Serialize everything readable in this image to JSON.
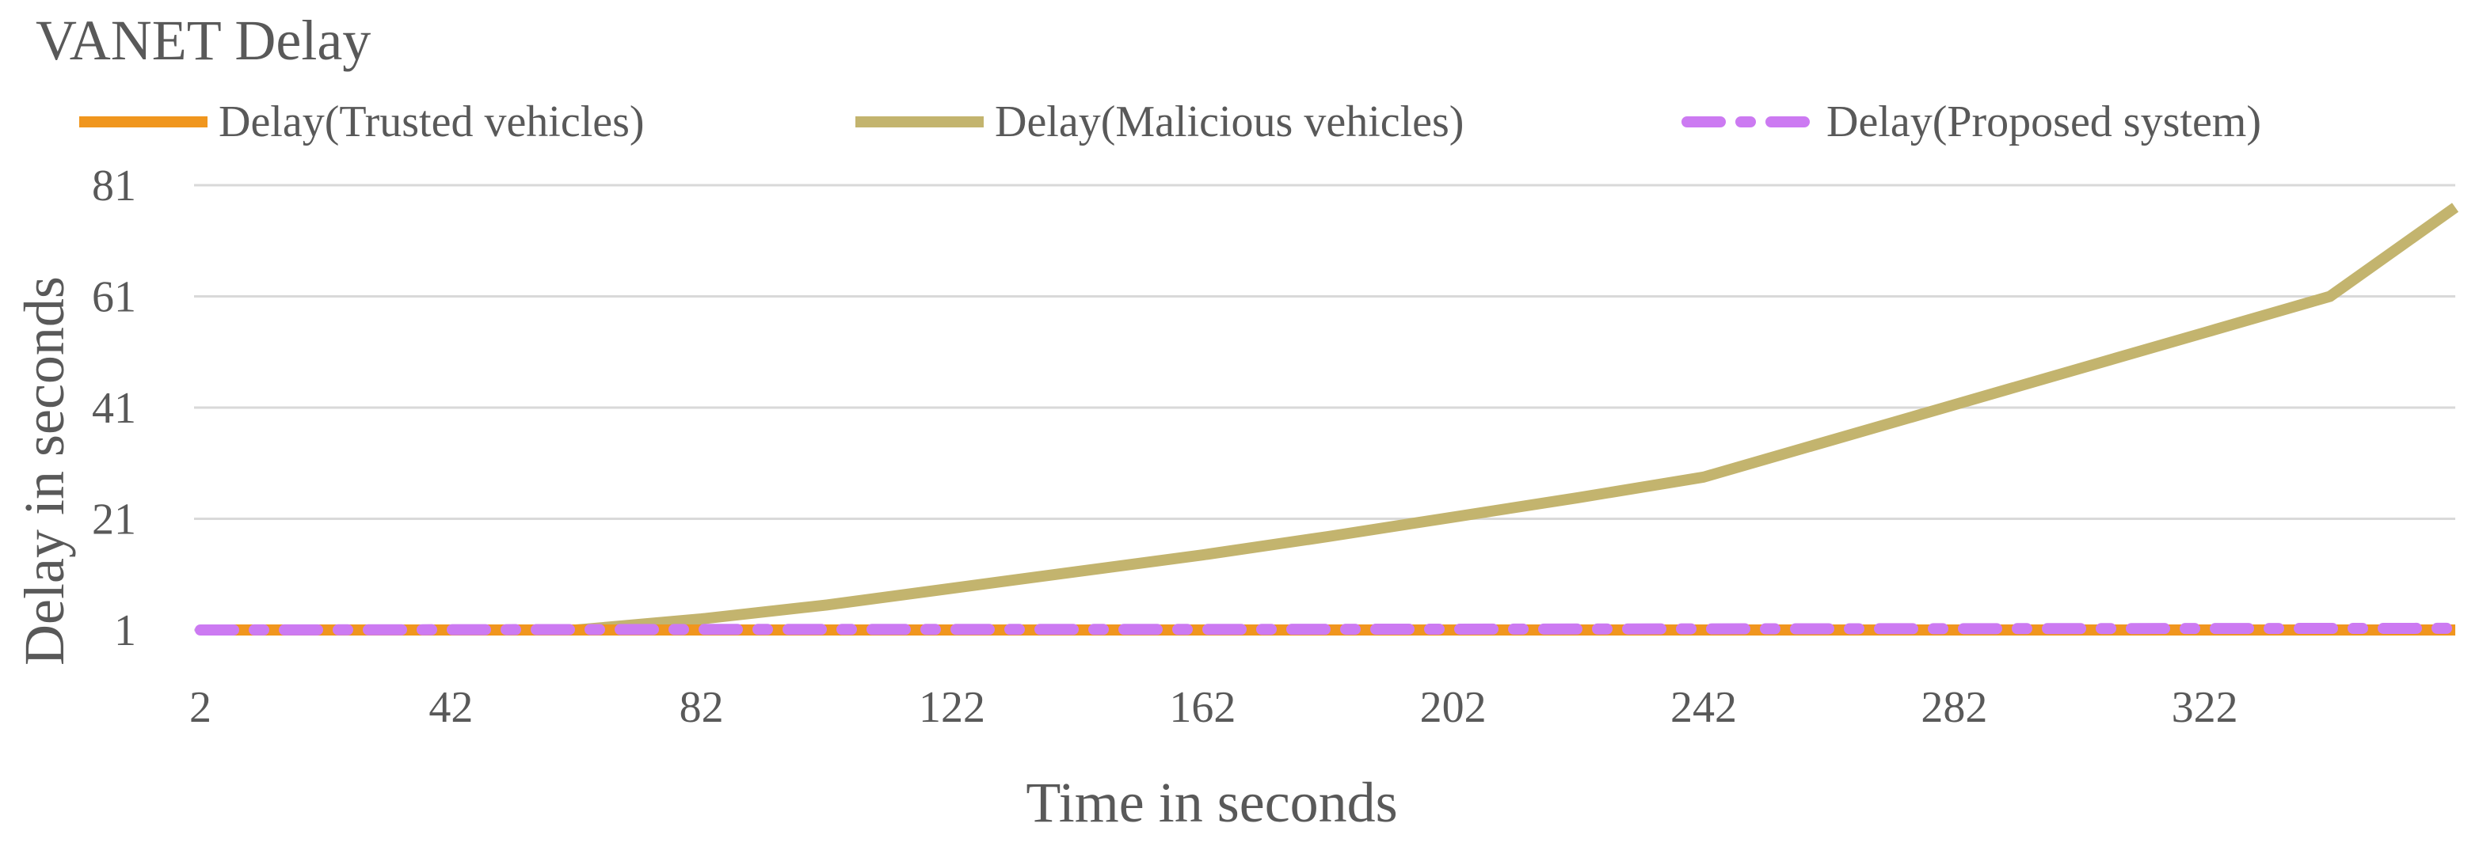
{
  "chart_data": {
    "type": "line",
    "title": "VANET Delay",
    "xlabel": "Time in seconds",
    "ylabel": "Delay in seconds",
    "xlim": [
      2,
      362
    ],
    "ylim": [
      1,
      81
    ],
    "xticks": [
      2,
      42,
      82,
      122,
      162,
      202,
      242,
      282,
      322
    ],
    "yticks": [
      1,
      21,
      41,
      61,
      81
    ],
    "grid": "horizontal",
    "legend_position": "top",
    "series": [
      {
        "name": "Delay(Trusted vehicles)",
        "color": "#f0961e",
        "style": "solid",
        "x": [
          2,
          362
        ],
        "y": [
          1,
          1
        ]
      },
      {
        "name": "Delay(Malicious vehicles)",
        "color": "#c3b46e",
        "style": "solid",
        "x": [
          2,
          62,
          82,
          102,
          122,
          142,
          162,
          182,
          202,
          222,
          242,
          262,
          282,
          302,
          322,
          342,
          362
        ],
        "y": [
          1,
          1,
          3,
          5.5,
          8.5,
          11.5,
          14.5,
          17.8,
          21.3,
          24.8,
          28.5,
          35,
          41.5,
          48,
          54.5,
          61,
          77
        ]
      },
      {
        "name": "Delay(Proposed system)",
        "color": "#cc7af2",
        "style": "dashdot",
        "x": [
          2,
          82,
          162,
          242,
          362
        ],
        "y": [
          1,
          1.1,
          1.1,
          1.2,
          1.3
        ]
      }
    ]
  }
}
